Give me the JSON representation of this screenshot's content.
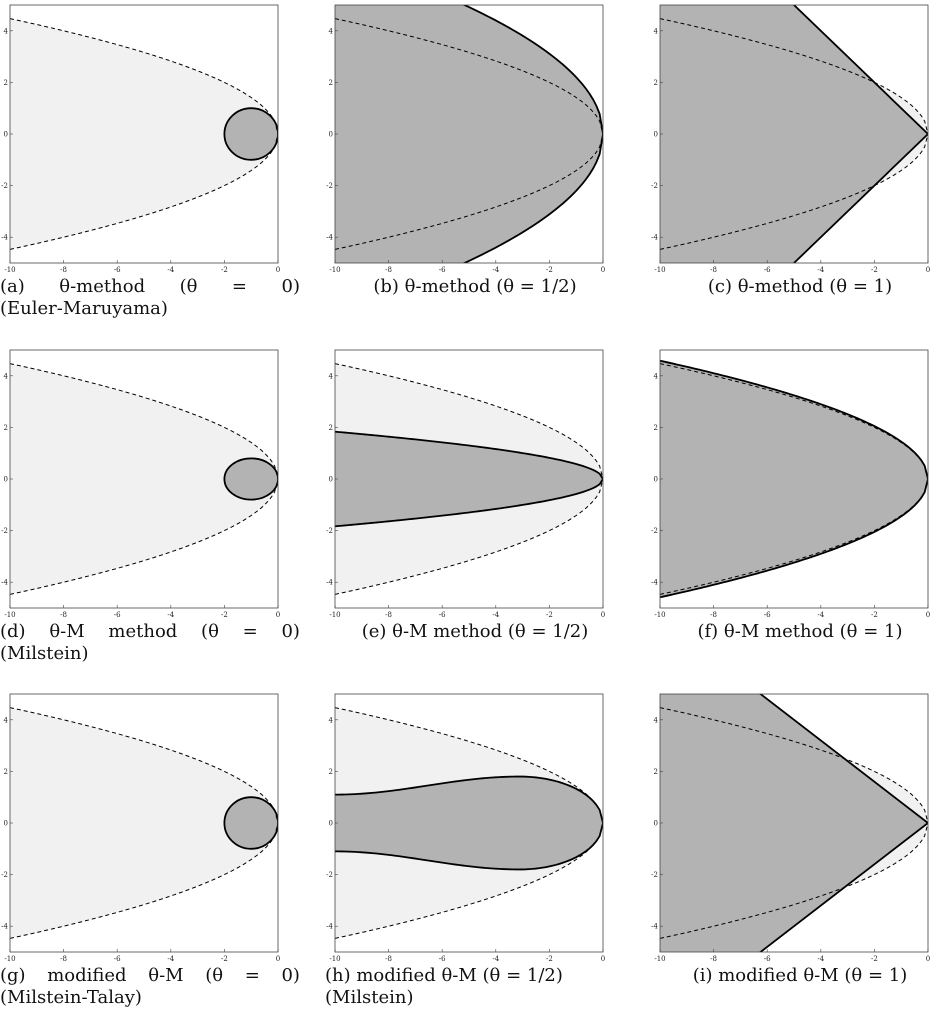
{
  "figure": {
    "panels": [
      {
        "id": "a",
        "caption_lines": [
          "(a) θ-method (θ = 0)",
          "(Euler-Maruyama)"
        ],
        "caption_tokens": [
          "(a)",
          "θ-method",
          "(θ",
          "=",
          "0)"
        ],
        "region": {
          "type": "circle",
          "center": [
            -1,
            0
          ],
          "radius": 1
        }
      },
      {
        "id": "b",
        "caption_lines": [
          "(b) θ-method (θ = 1/2)"
        ],
        "region": {
          "type": "parabola_fill",
          "vertex_x": 0,
          "coef": 2.2
        }
      },
      {
        "id": "c",
        "caption_lines": [
          "(c) θ-method (θ = 1)"
        ],
        "region": {
          "type": "wedge_outside",
          "vertex_x": 0,
          "slope": 1
        }
      },
      {
        "id": "d",
        "caption_lines": [
          "(d) θ-M method (θ = 0)",
          "(Milstein)"
        ],
        "caption_tokens": [
          "(d)",
          "θ-M",
          "method",
          "(θ",
          "=",
          "0)"
        ],
        "region": {
          "type": "rounded_blob",
          "x_range": [
            -2,
            0
          ],
          "y_half": 0.8
        }
      },
      {
        "id": "e",
        "caption_lines": [
          "(e) θ-M method (θ = 1/2)"
        ],
        "region": {
          "type": "parabola_fill",
          "vertex_x": 0,
          "coef": 0.58
        }
      },
      {
        "id": "f",
        "caption_lines": [
          "(f) θ-M method (θ = 1)"
        ],
        "region": {
          "type": "parabola_fill",
          "vertex_x": 0,
          "coef": 1.45
        }
      },
      {
        "id": "g",
        "caption_lines": [
          "(g) modified θ-M (θ = 0)",
          "(Milstein-Talay)"
        ],
        "caption_tokens": [
          "(g)",
          "modified",
          "θ-M",
          "(θ",
          "=",
          "0)"
        ],
        "region": {
          "type": "circle",
          "center": [
            -1,
            0
          ],
          "radius": 1
        }
      },
      {
        "id": "h",
        "caption_lines": [
          "(h) modified θ-M (θ = 1/2)",
          "(Milstein)"
        ],
        "region": {
          "type": "bulb",
          "neck_y": 1.1,
          "max_y": 1.8,
          "max_x": -3.1
        }
      },
      {
        "id": "i",
        "caption_lines": [
          "(i) modified θ-M (θ = 1)"
        ],
        "region": {
          "type": "wedge_outside",
          "vertex_x": 0,
          "slope": 0.8
        }
      }
    ]
  },
  "chart_data": {
    "type": "area",
    "x_ticks": [
      "-10",
      "-8",
      "-6",
      "-4",
      "-2",
      "0"
    ],
    "y_ticks": [
      "4",
      "2",
      "0",
      "-2",
      "-4"
    ],
    "xlim": [
      -10,
      0
    ],
    "ylim": [
      -5,
      5
    ],
    "reference_boundary": {
      "style": "dashed",
      "equation": "x = -y^2 / 2",
      "x": [
        -10,
        -8,
        -6,
        -4,
        -2,
        0
      ],
      "y_upper": [
        4.47,
        4.0,
        3.46,
        2.83,
        2.0,
        0
      ]
    },
    "colors": {
      "stable_region": "#b3b3b3",
      "reference_region": "#f1f1f1",
      "boundary": "#000000"
    }
  }
}
